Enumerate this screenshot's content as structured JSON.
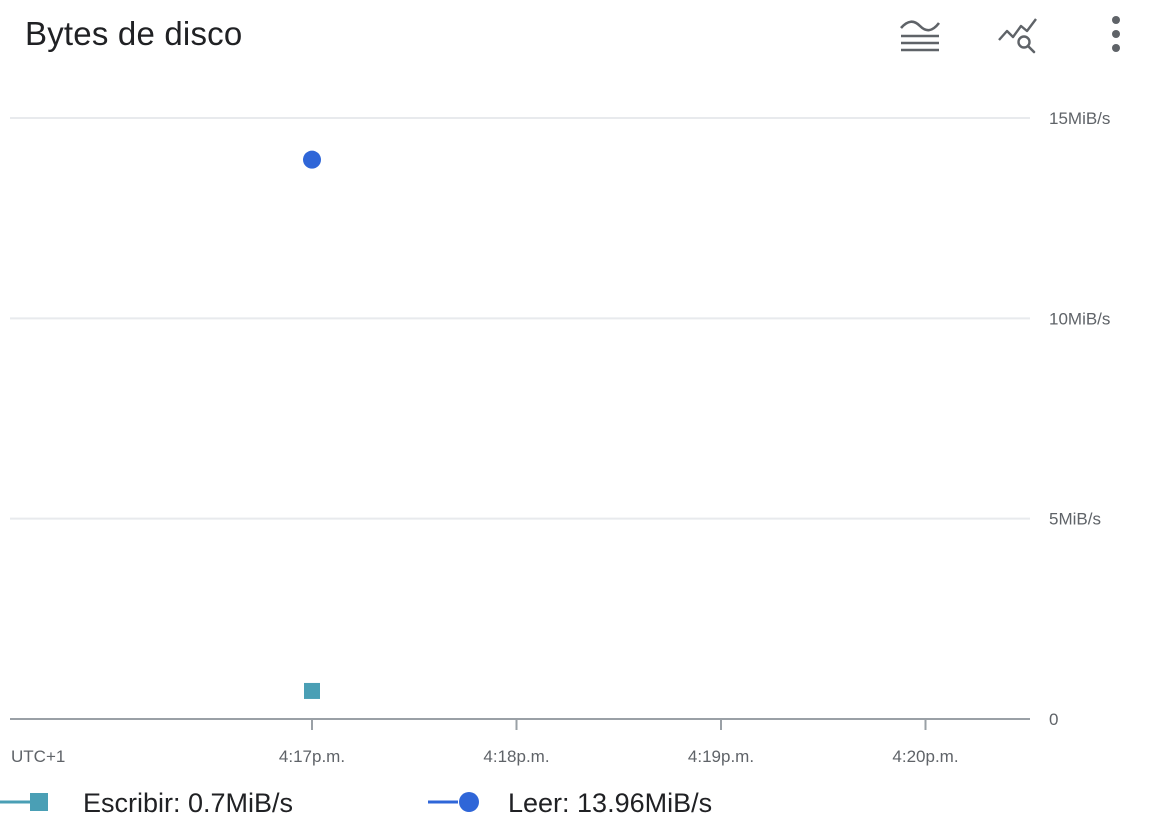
{
  "header": {
    "title": "Bytes de disco",
    "icons": [
      "legend-toggle-icon",
      "explore-chart-icon",
      "more-vert-icon"
    ]
  },
  "colors": {
    "escribir": "#4a9fb5",
    "leer": "#2f66d8",
    "grid": "#e8eaed",
    "axis": "#9aa0a6",
    "icon": "#5f6368"
  },
  "chart_data": {
    "type": "scatter",
    "title": "Bytes de disco",
    "timezone_label": "UTC+1",
    "x_ticks": [
      "4:17p.m.",
      "4:18p.m.",
      "4:19p.m.",
      "4:20p.m."
    ],
    "y_ticks": [
      {
        "value": 0,
        "label": "0"
      },
      {
        "value": 5,
        "label": "5MiB/s"
      },
      {
        "value": 10,
        "label": "10MiB/s"
      },
      {
        "value": 15,
        "label": "15MiB/s"
      }
    ],
    "ylim": [
      0,
      15
    ],
    "y_unit": "MiB/s",
    "grid": true,
    "legend_position": "bottom",
    "series": [
      {
        "name": "Escribir",
        "marker": "square",
        "points": [
          {
            "x": "4:17p.m.",
            "y": 0.7
          }
        ],
        "legend_value": "0.7MiB/s"
      },
      {
        "name": "Leer",
        "marker": "circle",
        "points": [
          {
            "x": "4:17p.m.",
            "y": 13.96
          }
        ],
        "legend_value": "13.96MiB/s"
      }
    ]
  }
}
